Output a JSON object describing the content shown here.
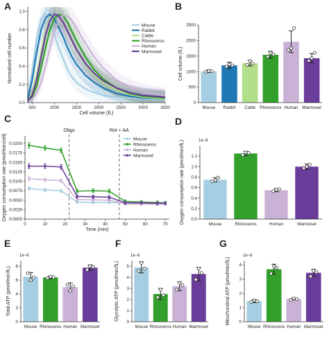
{
  "panels": [
    "A",
    "B",
    "C",
    "D",
    "E",
    "F",
    "G"
  ],
  "chart_data": [
    {
      "id": "A",
      "type": "line",
      "xlabel": "Cell volume (fL)",
      "ylabel": "Normalised cell number",
      "xlim": [
        400,
        3500
      ],
      "ylim": [
        0,
        1.05
      ],
      "xticks": [
        500,
        1000,
        1500,
        2000,
        2500,
        3000,
        3500
      ],
      "yticks": [
        0.0,
        0.2,
        0.4,
        0.6,
        0.8,
        1.0
      ],
      "yticklabels": [
        "0.0",
        "0.2",
        "0.4",
        "0.6",
        "0.8",
        "1.0"
      ],
      "legend_position": "top-right",
      "grid": false,
      "series": [
        {
          "name": "Mouse",
          "color": "#a6cee3",
          "x": [
            400,
            500,
            600,
            700,
            800,
            900,
            1000,
            1100,
            1200,
            1300,
            1400,
            1500,
            1700,
            1900,
            2100,
            2400,
            2700,
            3000,
            3500
          ],
          "y": [
            0.05,
            0.35,
            0.7,
            0.92,
            0.98,
            0.9,
            0.75,
            0.6,
            0.48,
            0.36,
            0.28,
            0.22,
            0.15,
            0.11,
            0.08,
            0.06,
            0.05,
            0.04,
            0.03
          ]
        },
        {
          "name": "Rabbit",
          "color": "#1f78b4",
          "x": [
            400,
            500,
            600,
            700,
            800,
            900,
            1000,
            1100,
            1200,
            1300,
            1400,
            1500,
            1700,
            1900,
            2100,
            2400,
            2700,
            3000,
            3500
          ],
          "y": [
            0.04,
            0.25,
            0.55,
            0.8,
            0.93,
            0.97,
            0.92,
            0.82,
            0.72,
            0.6,
            0.5,
            0.42,
            0.3,
            0.22,
            0.16,
            0.1,
            0.07,
            0.05,
            0.04
          ]
        },
        {
          "name": "Cattle",
          "color": "#b2df8a",
          "x": [
            400,
            500,
            600,
            700,
            800,
            900,
            1000,
            1100,
            1200,
            1300,
            1400,
            1500,
            1700,
            1900,
            2100,
            2400,
            2700,
            3000,
            3500
          ],
          "y": [
            0.02,
            0.1,
            0.3,
            0.55,
            0.78,
            0.92,
            0.97,
            0.95,
            0.88,
            0.78,
            0.67,
            0.57,
            0.42,
            0.3,
            0.22,
            0.14,
            0.09,
            0.06,
            0.04
          ]
        },
        {
          "name": "Rhinoceros",
          "color": "#33a02c",
          "x": [
            400,
            500,
            600,
            700,
            800,
            900,
            1000,
            1100,
            1200,
            1300,
            1400,
            1500,
            1700,
            1900,
            2100,
            2400,
            2700,
            3000,
            3500
          ],
          "y": [
            0.02,
            0.06,
            0.18,
            0.38,
            0.6,
            0.8,
            0.92,
            0.97,
            0.95,
            0.88,
            0.78,
            0.68,
            0.5,
            0.36,
            0.26,
            0.16,
            0.1,
            0.07,
            0.05
          ]
        },
        {
          "name": "Human",
          "color": "#cab2d6",
          "x": [
            400,
            500,
            600,
            700,
            800,
            900,
            1000,
            1100,
            1200,
            1300,
            1400,
            1500,
            1700,
            1900,
            2100,
            2400,
            2700,
            3000,
            3500
          ],
          "y": [
            0.01,
            0.04,
            0.1,
            0.22,
            0.4,
            0.6,
            0.78,
            0.9,
            0.96,
            0.95,
            0.9,
            0.82,
            0.65,
            0.5,
            0.38,
            0.25,
            0.17,
            0.12,
            0.08
          ]
        },
        {
          "name": "Marmoset",
          "color": "#6a3d9a",
          "x": [
            400,
            500,
            600,
            700,
            800,
            900,
            1000,
            1100,
            1200,
            1300,
            1400,
            1500,
            1700,
            1900,
            2100,
            2400,
            2700,
            3000,
            3500
          ],
          "y": [
            0.02,
            0.08,
            0.25,
            0.5,
            0.74,
            0.9,
            0.97,
            0.95,
            0.88,
            0.78,
            0.68,
            0.58,
            0.43,
            0.32,
            0.24,
            0.16,
            0.11,
            0.08,
            0.06
          ]
        }
      ]
    },
    {
      "id": "B",
      "type": "bar",
      "ylabel": "Cell volume (fL)",
      "ylim": [
        0,
        2500
      ],
      "yticks": [
        0,
        500,
        1000,
        1500,
        2000,
        2500
      ],
      "categories": [
        "Mouse",
        "Rabbit",
        "Cattle",
        "Rhinoceros",
        "Human",
        "Marmoset"
      ],
      "colors": [
        "#a6cee3",
        "#1f78b4",
        "#b2df8a",
        "#33a02c",
        "#cab2d6",
        "#6a3d9a"
      ],
      "values": [
        1010,
        1200,
        1270,
        1540,
        1960,
        1430
      ],
      "errors": [
        40,
        100,
        90,
        110,
        350,
        150
      ],
      "points": [
        [
          990,
          1020,
          1010
        ],
        [
          1160,
          1230,
          1200
        ],
        [
          1220,
          1340,
          1250
        ],
        [
          1480,
          1600,
          1550
        ],
        [
          1700,
          1750,
          2400
        ],
        [
          1350,
          1430,
          1600
        ]
      ]
    },
    {
      "id": "C",
      "type": "line",
      "xlabel": "Time (min)",
      "ylabel": "Oxygen consumption rate (pmol/min/cell)",
      "xlim": [
        0,
        72
      ],
      "ylim": [
        0,
        0.022
      ],
      "xticks": [
        0,
        10,
        20,
        30,
        40,
        50,
        60,
        70
      ],
      "yticks": [
        0,
        0.0025,
        0.005,
        0.0075,
        0.01,
        0.0125,
        0.015,
        0.0175,
        0.02
      ],
      "yticklabels": [
        "0.0000",
        "0.0025",
        "0.0050",
        "0.0075",
        "0.0100",
        "0.0125",
        "0.0150",
        "0.0175",
        "0.0200"
      ],
      "x": [
        2,
        10,
        18,
        26,
        34,
        42,
        50,
        58,
        66,
        70
      ],
      "legend_position": "top-right",
      "annotations": [
        {
          "label": "Oligo",
          "x": 22
        },
        {
          "label": "Rot + AA",
          "x": 47
        }
      ],
      "series": [
        {
          "name": "Mouse",
          "color": "#a6cee3",
          "y": [
            0.0081,
            0.0077,
            0.0075,
            0.0045,
            0.0044,
            0.0044,
            0.0042,
            0.0041,
            0.0041,
            0.0041
          ],
          "err": [
            0.0004,
            0.0004,
            0.0004,
            0.0003,
            0.0003,
            0.0003,
            0.0003,
            0.0003,
            0.0003,
            0.0003
          ]
        },
        {
          "name": "Rhinoceros",
          "color": "#33a02c",
          "y": [
            0.0195,
            0.0188,
            0.0182,
            0.0074,
            0.0075,
            0.0074,
            0.0047,
            0.0045,
            0.0044,
            0.0043
          ],
          "err": [
            0.0007,
            0.0006,
            0.0006,
            0.0005,
            0.0005,
            0.0005,
            0.0004,
            0.0004,
            0.0004,
            0.0004
          ]
        },
        {
          "name": "Human",
          "color": "#cab2d6",
          "y": [
            0.0107,
            0.0104,
            0.0102,
            0.0052,
            0.0051,
            0.005,
            0.004,
            0.004,
            0.0039,
            0.0039
          ],
          "err": [
            0.0005,
            0.0005,
            0.0005,
            0.0003,
            0.0003,
            0.0003,
            0.0003,
            0.0003,
            0.0003,
            0.0003
          ]
        },
        {
          "name": "Marmoset",
          "color": "#6a3d9a",
          "y": [
            0.014,
            0.014,
            0.0138,
            0.006,
            0.0059,
            0.0058,
            0.0043,
            0.0043,
            0.0042,
            0.0042
          ],
          "err": [
            0.0006,
            0.0006,
            0.0006,
            0.0004,
            0.0004,
            0.0004,
            0.0003,
            0.0003,
            0.0003,
            0.0003
          ]
        }
      ]
    },
    {
      "id": "D",
      "type": "bar",
      "ylabel": "Oxygen consumption rate (pmol/min/fL)",
      "exponent": "1e−6",
      "ylim": [
        0,
        1.4
      ],
      "yticks": [
        0.0,
        0.2,
        0.4,
        0.6,
        0.8,
        1.0,
        1.2
      ],
      "yticklabels": [
        "0.0",
        "0.2",
        "0.4",
        "0.6",
        "0.8",
        "1.0",
        "1.2"
      ],
      "categories": [
        "Mouse",
        "Rhinoceros",
        "Human",
        "Marmoset"
      ],
      "colors": [
        "#a6cee3",
        "#33a02c",
        "#cab2d6",
        "#6a3d9a"
      ],
      "values": [
        0.75,
        1.25,
        0.55,
        1.0
      ],
      "errors": [
        0.04,
        0.04,
        0.03,
        0.05
      ],
      "points": [
        [
          0.72,
          0.74,
          0.79
        ],
        [
          1.22,
          1.27,
          1.26
        ],
        [
          0.53,
          0.56,
          0.57
        ],
        [
          0.97,
          1.0,
          1.04
        ]
      ]
    },
    {
      "id": "E",
      "type": "bar",
      "ylabel": "Total ATP (pmol/min/fL)",
      "exponent": "1e−6",
      "ylim": [
        0,
        8.8
      ],
      "yticks": [
        0,
        2,
        4,
        6,
        8
      ],
      "yticklabels": [
        "0",
        "2",
        "4",
        "6",
        "8"
      ],
      "categories": [
        "Mouse",
        "Rhinoceros",
        "Human",
        "Marmoset"
      ],
      "colors": [
        "#a6cee3",
        "#33a02c",
        "#cab2d6",
        "#6a3d9a"
      ],
      "values": [
        6.5,
        6.4,
        5.0,
        7.8
      ],
      "errors": [
        0.6,
        0.2,
        0.6,
        0.4
      ],
      "points": [
        [
          7.0,
          6.0,
          6.4
        ],
        [
          6.3,
          6.5,
          6.4
        ],
        [
          5.3,
          4.5,
          5.1
        ],
        [
          7.5,
          8.0,
          7.9
        ]
      ]
    },
    {
      "id": "F",
      "type": "bar",
      "ylabel": "Glycolytic ATP (pmol/min/fL)",
      "exponent": "1e−6",
      "ylim": [
        0,
        5.5
      ],
      "yticks": [
        0,
        1,
        2,
        3,
        4,
        5
      ],
      "yticklabels": [
        "0",
        "1",
        "2",
        "3",
        "4",
        "5"
      ],
      "categories": [
        "Mouse",
        "Rhinoceros",
        "Human",
        "Marmoset"
      ],
      "colors": [
        "#a6cee3",
        "#33a02c",
        "#cab2d6",
        "#6a3d9a"
      ],
      "values": [
        4.9,
        2.5,
        3.2,
        4.3
      ],
      "errors": [
        0.5,
        0.5,
        0.4,
        0.6
      ],
      "points": [
        [
          4.6,
          5.3,
          4.8
        ],
        [
          2.2,
          2.9,
          2.4
        ],
        [
          2.9,
          3.5,
          3.3
        ],
        [
          3.8,
          4.8,
          4.4
        ]
      ]
    },
    {
      "id": "G",
      "type": "bar",
      "ylabel": "Mitochondrial ATP (pmol/min/fL)",
      "exponent": "1e−6",
      "ylim": [
        0,
        4.3
      ],
      "yticks": [
        0,
        1,
        2,
        3,
        4
      ],
      "yticklabels": [
        "0",
        "1",
        "2",
        "3",
        "4"
      ],
      "categories": [
        "Mouse",
        "Rhinoceros",
        "Human",
        "Marmoset"
      ],
      "colors": [
        "#a6cee3",
        "#33a02c",
        "#cab2d6",
        "#6a3d9a"
      ],
      "values": [
        1.45,
        3.7,
        1.6,
        3.45
      ],
      "errors": [
        0.1,
        0.35,
        0.06,
        0.25
      ],
      "points": [
        [
          1.4,
          1.5,
          1.45
        ],
        [
          3.4,
          3.9,
          3.8
        ],
        [
          1.55,
          1.65,
          1.6
        ],
        [
          3.2,
          3.6,
          3.5
        ]
      ]
    }
  ]
}
